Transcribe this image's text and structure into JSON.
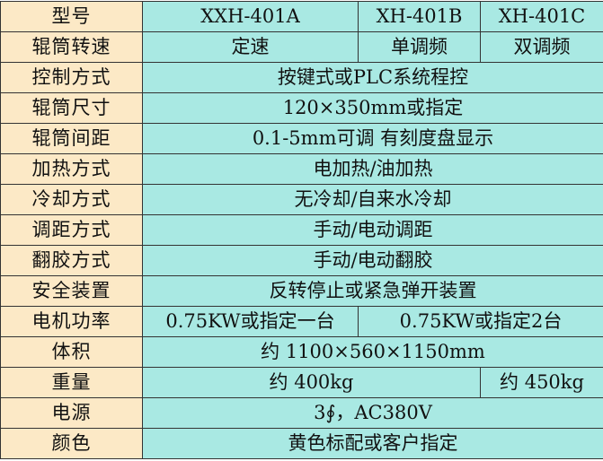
{
  "colors": {
    "label_bg": "#FCE9C6",
    "value_bg": "#A9E9E3"
  },
  "rows": [
    {
      "label": "型号",
      "a": "XXH-401A",
      "b": "XH-401B",
      "c": "XH-401C"
    },
    {
      "label": "辊筒转速",
      "a": "定速",
      "b": "单调频",
      "c": "双调频"
    },
    {
      "label": "控制方式",
      "value": "按键式或PLC系统程控"
    },
    {
      "label": "辊筒尺寸",
      "value": "120×350mm或指定"
    },
    {
      "label": "辊筒间距",
      "value": "0.1-5mm可调 有刻度盘显示"
    },
    {
      "label": "加热方式",
      "value": "电加热/油加热"
    },
    {
      "label": "冷却方式",
      "value": "无冷却/自来水冷却"
    },
    {
      "label": "调距方式",
      "value": "手动/电动调距"
    },
    {
      "label": "翻胶方式",
      "value": "手动/电动翻胶"
    },
    {
      "label": "安全装置",
      "value": "反转停止或紧急弹开装置"
    },
    {
      "label": "电机功率",
      "a": "0.75KW或指定一台",
      "bc": "0.75KW或指定2台"
    },
    {
      "label": "体积",
      "value": "约 1100×560×1150mm"
    },
    {
      "label": "重量",
      "ab": "约 400kg",
      "c": "约 450kg"
    },
    {
      "label": "电源",
      "value": "3∮，AC380V"
    },
    {
      "label": "颜色",
      "value": "黄色标配或客户指定"
    }
  ]
}
